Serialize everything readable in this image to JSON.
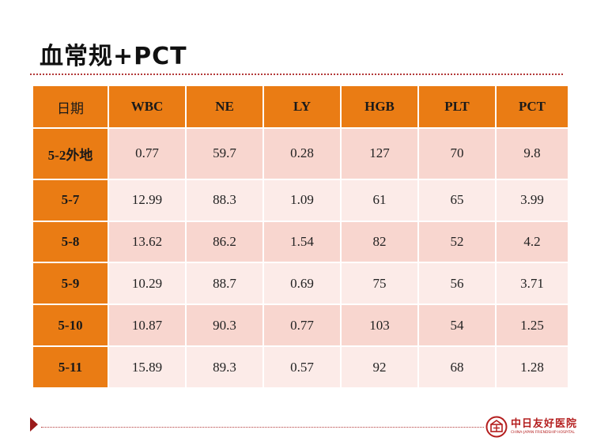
{
  "slide": {
    "title": "血常规+PCT"
  },
  "table": {
    "headers": [
      "日期",
      "WBC",
      "NE",
      "LY",
      "HGB",
      "PLT",
      "PCT"
    ],
    "rows": [
      {
        "date": "5-2外地",
        "cells": [
          "0.77",
          "59.7",
          "0.28",
          "127",
          "70",
          "9.8"
        ]
      },
      {
        "date": "5-7",
        "cells": [
          "12.99",
          "88.3",
          "1.09",
          "61",
          "65",
          "3.99"
        ]
      },
      {
        "date": "5-8",
        "cells": [
          "13.62",
          "86.2",
          "1.54",
          "82",
          "52",
          "4.2"
        ]
      },
      {
        "date": "5-9",
        "cells": [
          "10.29",
          "88.7",
          "0.69",
          "75",
          "56",
          "3.71"
        ]
      },
      {
        "date": "5-10",
        "cells": [
          "10.87",
          "90.3",
          "0.77",
          "103",
          "54",
          "1.25"
        ]
      },
      {
        "date": "5-11",
        "cells": [
          "15.89",
          "89.3",
          "0.57",
          "92",
          "68",
          "1.28"
        ]
      }
    ]
  },
  "footer": {
    "logo_cn": "中日友好医院",
    "logo_en": "CHINA-JAPAN FRIENDSHIP HOSPITAL"
  },
  "colors": {
    "header_orange": "#ea7c14",
    "row_dark": "#f8d6cf",
    "row_light": "#fcebe8",
    "accent_red": "#b41e1e"
  }
}
